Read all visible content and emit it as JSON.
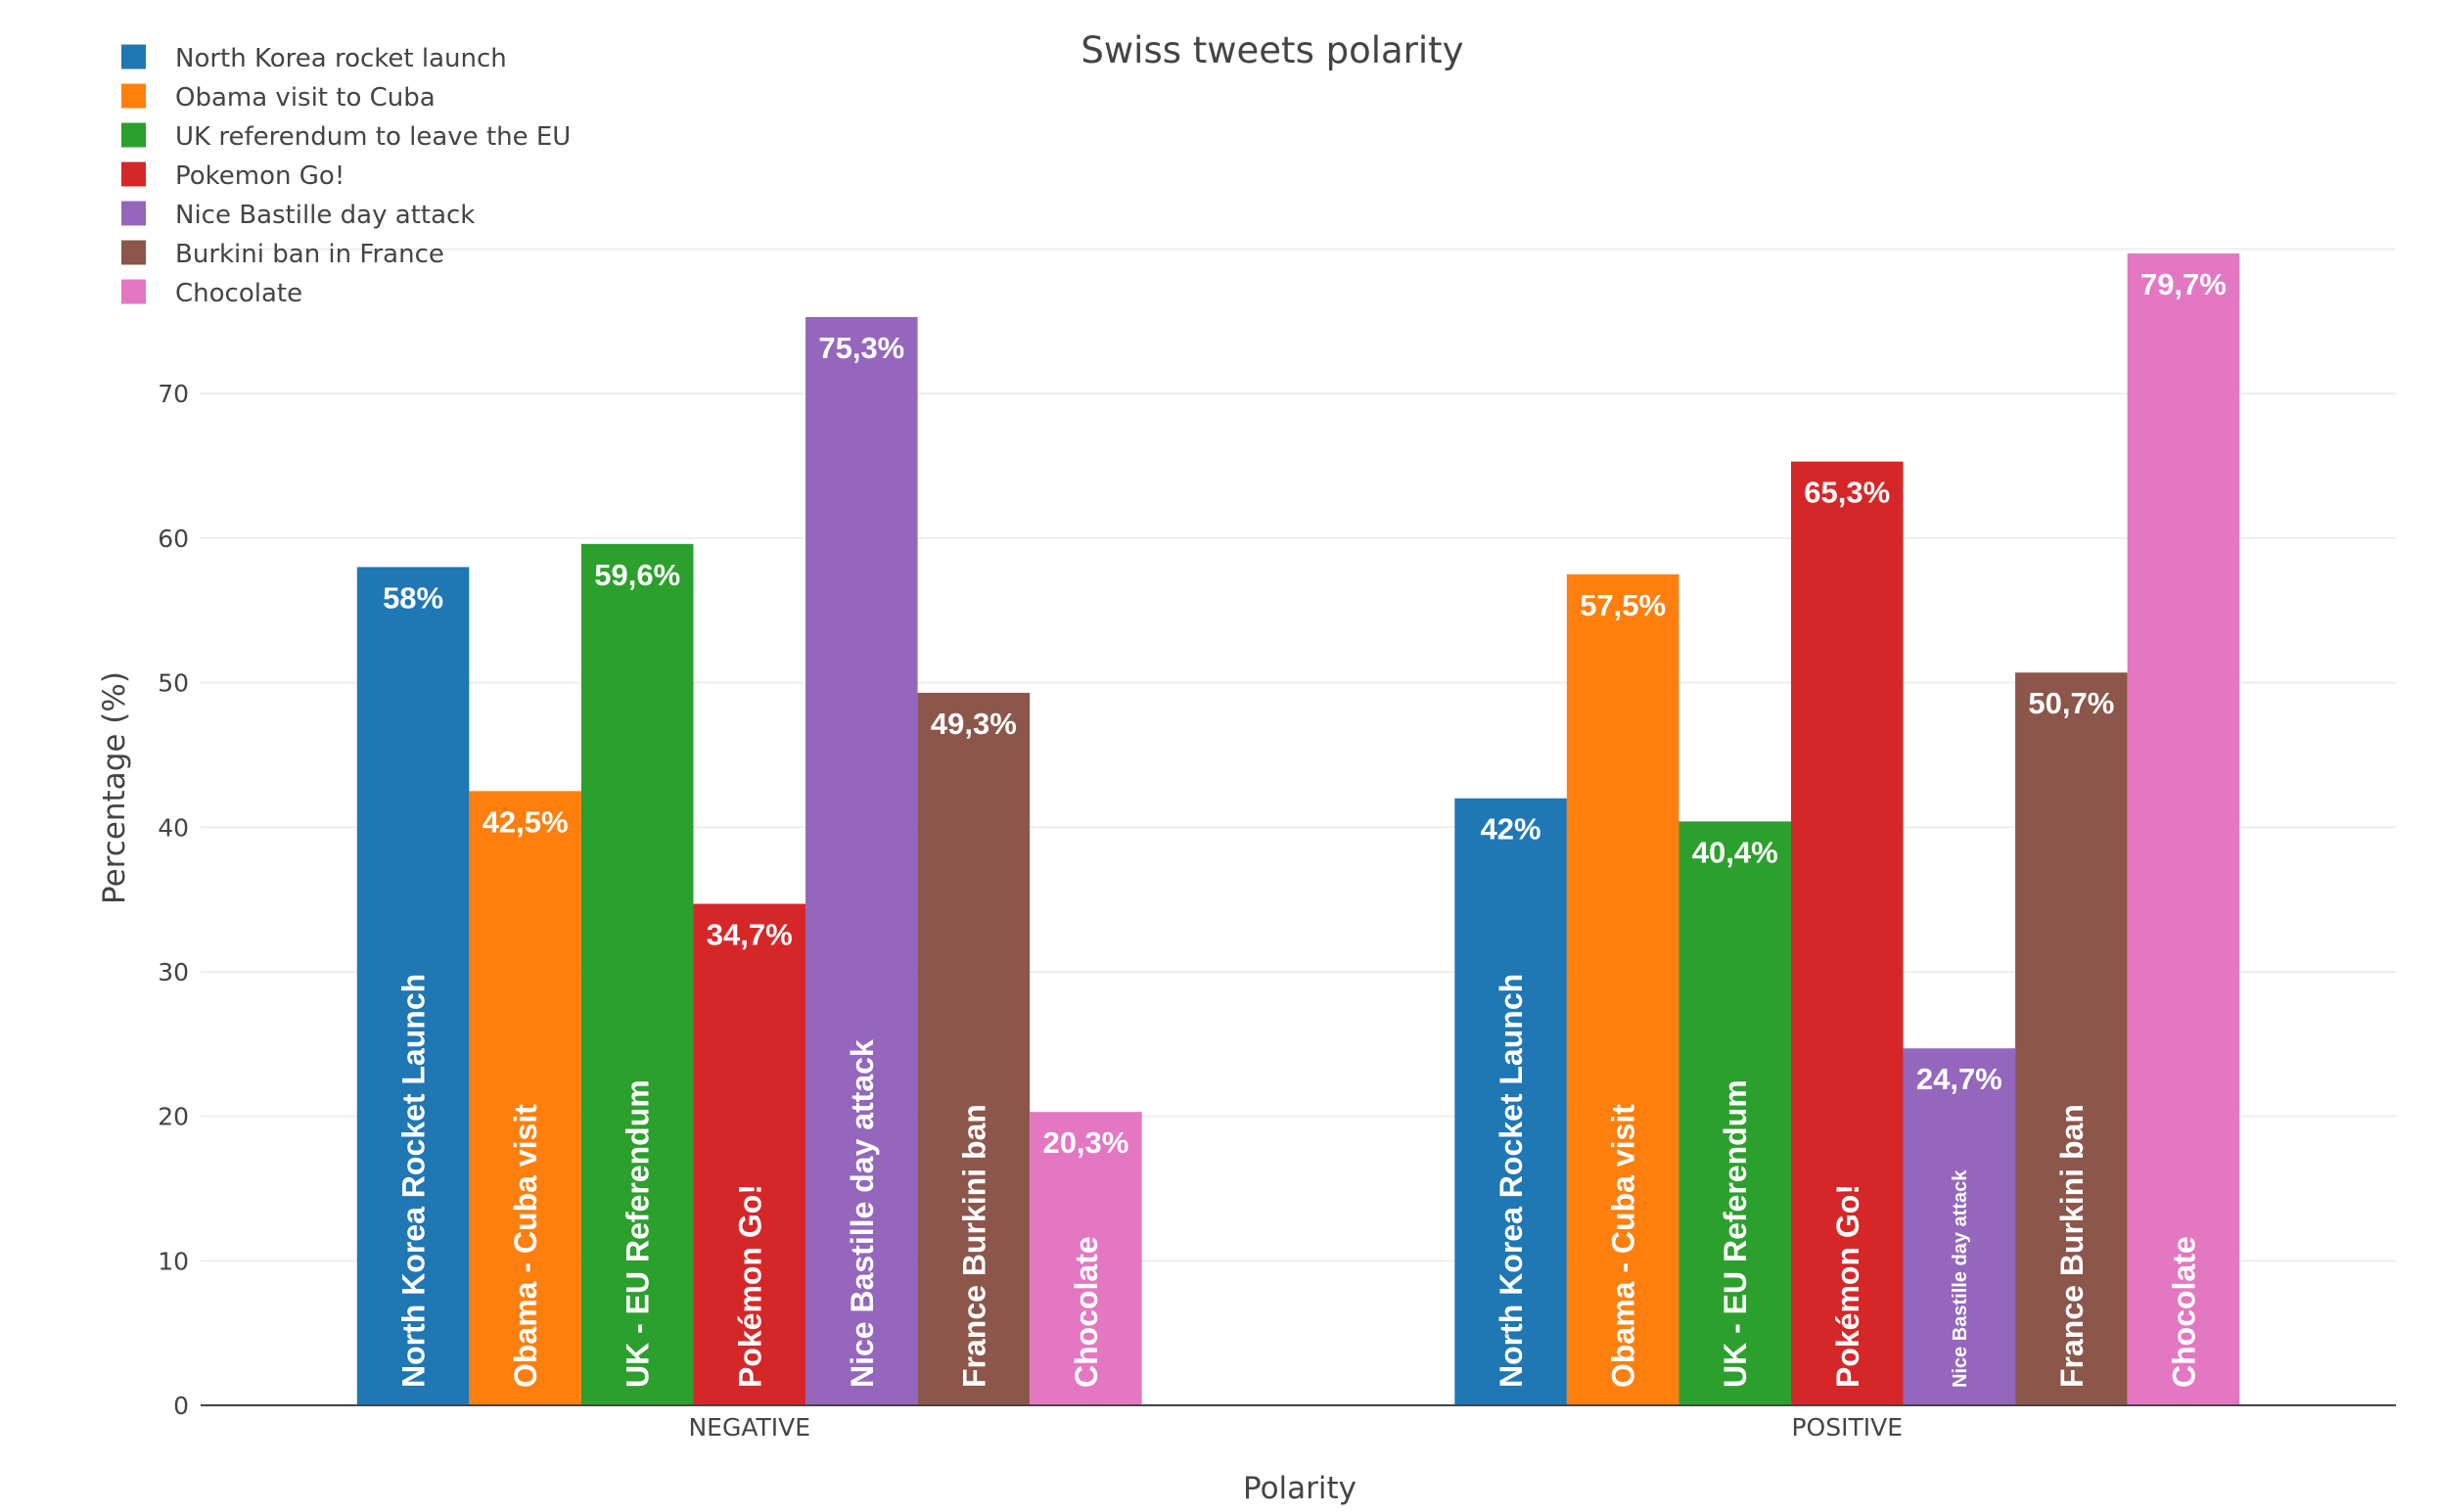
{
  "chart_data": {
    "type": "bar",
    "title": "Swiss tweets polarity",
    "xlabel": "Polarity",
    "ylabel": "Percentage (%)",
    "ylim": [
      0,
      82
    ],
    "yticks": [
      0,
      10,
      20,
      30,
      40,
      50,
      60,
      70
    ],
    "grid": true,
    "legend_position": "top-left",
    "categories": [
      "NEGATIVE",
      "POSITIVE"
    ],
    "series": [
      {
        "name": "North Korea rocket launch",
        "color": "#1f77b4",
        "values": [
          58,
          42
        ],
        "value_labels": [
          "58%",
          "42%"
        ],
        "bar_texts": [
          "North Korea Rocket Launch",
          "North Korea Rocket Launch"
        ]
      },
      {
        "name": "Obama visit to Cuba",
        "color": "#ff7f0e",
        "values": [
          42.5,
          57.5
        ],
        "value_labels": [
          "42,5%",
          "57,5%"
        ],
        "bar_texts": [
          "Obama - Cuba visit",
          "Obama - Cuba visit"
        ]
      },
      {
        "name": "UK referendum to leave the EU",
        "color": "#2ca02c",
        "values": [
          59.6,
          40.4
        ],
        "value_labels": [
          "59,6%",
          "40,4%"
        ],
        "bar_texts": [
          "UK - EU Referendum",
          "UK - EU Referendum"
        ]
      },
      {
        "name": "Pokemon Go!",
        "color": "#d62728",
        "values": [
          34.7,
          65.3
        ],
        "value_labels": [
          "34,7%",
          "65,3%"
        ],
        "bar_texts": [
          "Pokémon Go!",
          "Pokémon Go!"
        ]
      },
      {
        "name": "Nice Bastille day attack",
        "color": "#9467bd",
        "values": [
          75.3,
          24.7
        ],
        "value_labels": [
          "75,3%",
          "24,7%"
        ],
        "bar_texts": [
          "Nice Bastille day attack",
          "Nice Bastille day attack"
        ]
      },
      {
        "name": "Burkini ban in France",
        "color": "#8c564b",
        "values": [
          49.3,
          50.7
        ],
        "value_labels": [
          "49,3%",
          "50,7%"
        ],
        "bar_texts": [
          "France Burkini ban",
          "France Burkini ban"
        ]
      },
      {
        "name": "Chocolate",
        "color": "#e377c2",
        "values": [
          20.3,
          79.7
        ],
        "value_labels": [
          "20,3%",
          "79,7%"
        ],
        "bar_texts": [
          "Chocolate",
          "Chocolate"
        ]
      }
    ]
  }
}
